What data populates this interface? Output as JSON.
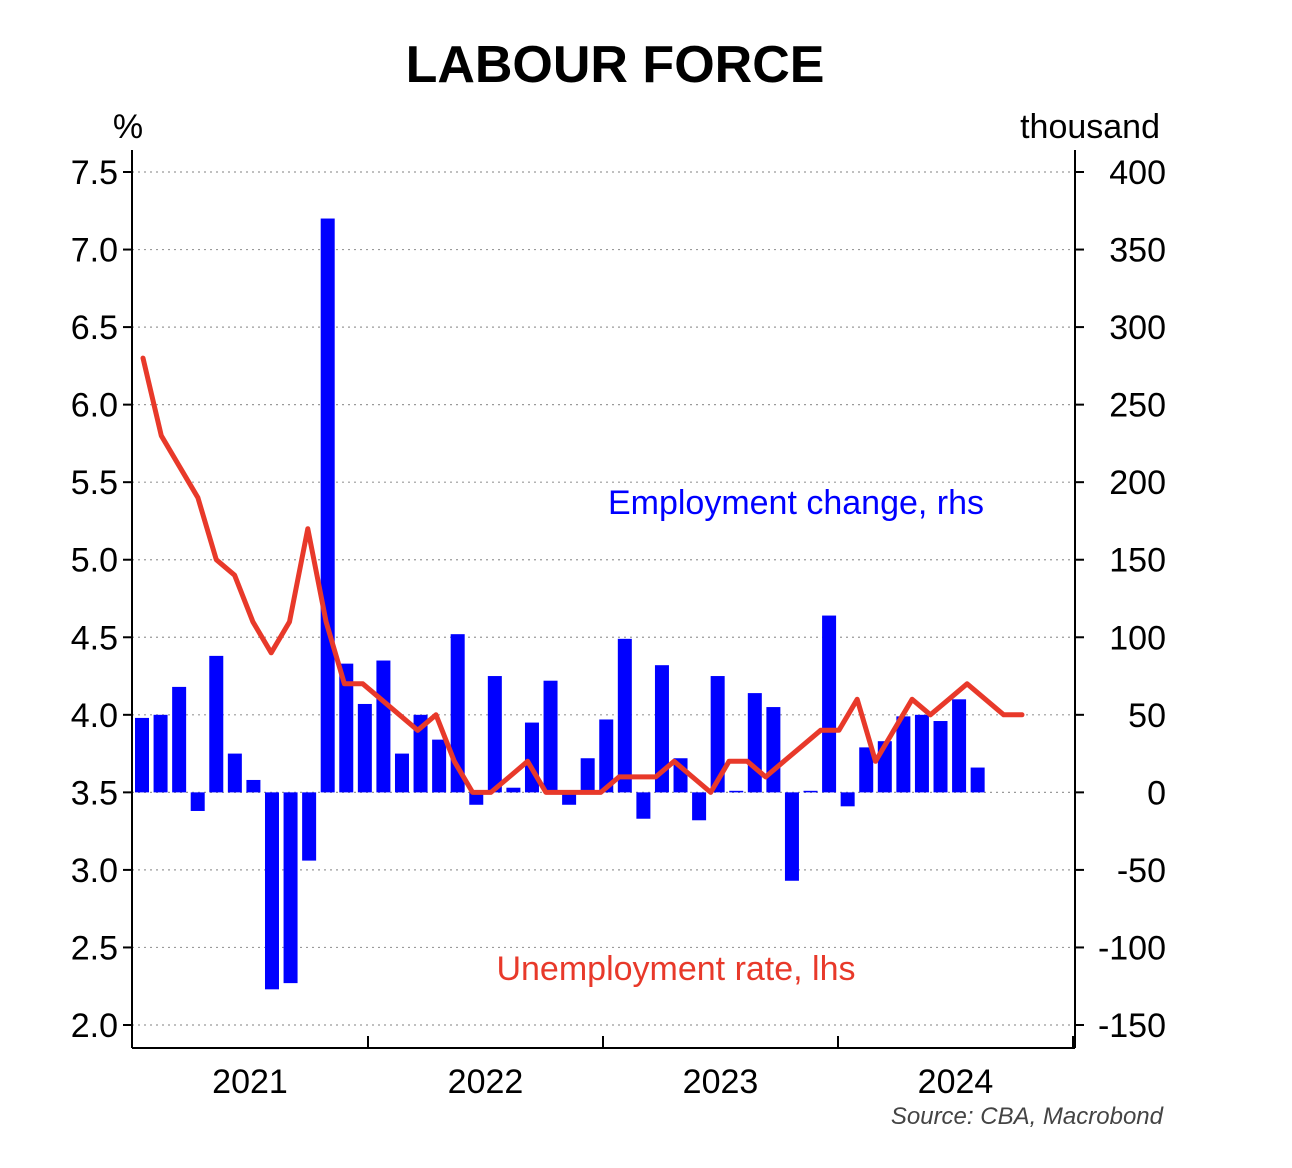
{
  "chart_data": {
    "type": "bar",
    "title": "LABOUR FORCE",
    "left_axis": {
      "unit_label": "%",
      "ylim": [
        2.0,
        7.5
      ],
      "ticks": [
        "7.5",
        "7.0",
        "6.5",
        "6.0",
        "5.5",
        "5.0",
        "4.5",
        "4.0",
        "3.5",
        "3.0",
        "2.5",
        "2.0"
      ]
    },
    "right_axis": {
      "unit_label": "thousand",
      "ylim": [
        -150,
        400
      ],
      "ticks": [
        "400",
        "350",
        "300",
        "250",
        "200",
        "150",
        "100",
        "50",
        "0",
        "-50",
        "-100",
        "-150"
      ]
    },
    "x_axis": {
      "year_labels": [
        "2021",
        "2022",
        "2023",
        "2024"
      ]
    },
    "grid": true,
    "series": [
      {
        "name": "Employment change, rhs",
        "type": "bar",
        "axis": "right",
        "color": "#0000ff",
        "values": [
          48,
          50,
          68,
          -12,
          88,
          25,
          8,
          -127,
          -123,
          -44,
          370,
          83,
          57,
          85,
          25,
          50,
          34,
          102,
          -8,
          75,
          3,
          45,
          72,
          -8,
          22,
          47,
          99,
          -17,
          82,
          22,
          -18,
          75,
          1,
          64,
          55,
          -57,
          1,
          114,
          -9,
          29,
          33,
          49,
          50,
          46,
          60,
          16
        ]
      },
      {
        "name": "Unemployment rate, lhs",
        "type": "line",
        "axis": "left",
        "color": "#e8392a",
        "values": [
          6.3,
          5.8,
          5.6,
          5.4,
          5.0,
          4.9,
          4.6,
          4.4,
          4.6,
          5.2,
          4.6,
          4.2,
          4.2,
          4.1,
          4.0,
          3.9,
          4.0,
          3.7,
          3.5,
          3.5,
          3.6,
          3.7,
          3.5,
          3.5,
          3.5,
          3.5,
          3.6,
          3.6,
          3.6,
          3.7,
          3.6,
          3.5,
          3.7,
          3.7,
          3.6,
          3.7,
          3.8,
          3.9,
          3.9,
          4.1,
          3.7,
          3.9,
          4.1,
          4.0,
          4.1,
          4.2,
          4.1,
          4.0,
          4.0
        ]
      }
    ],
    "annotations": {
      "employment_label": "Employment change, rhs",
      "unemployment_label": "Unemployment rate, lhs",
      "source": "Source: CBA, Macrobond"
    }
  }
}
